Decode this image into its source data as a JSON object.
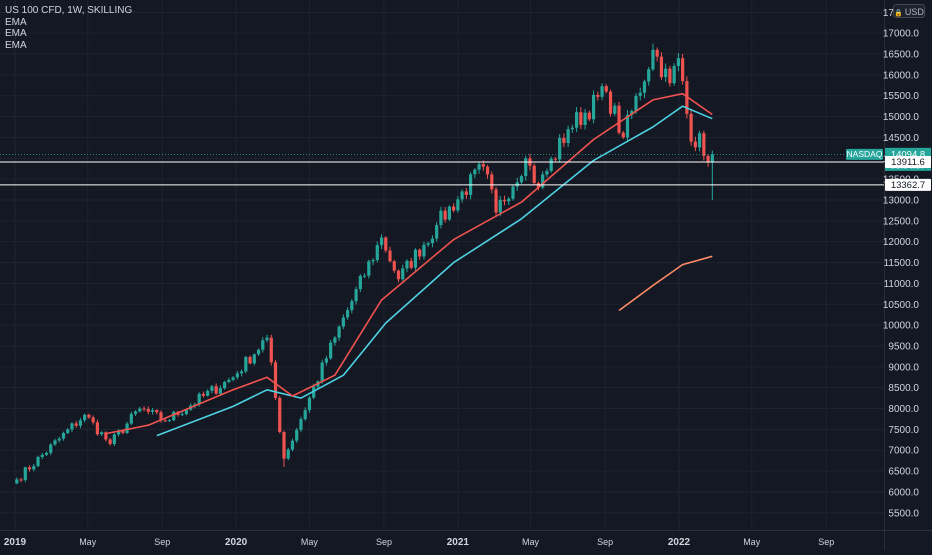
{
  "legend": {
    "symbol_line": "US 100 CFD, 1W, SKILLING",
    "indicator_1": "EMA",
    "indicator_2": "EMA",
    "indicator_3": "EMA"
  },
  "currency_button": {
    "label": "USD"
  },
  "price_labels": {
    "symbol_tag": "NASDAQ",
    "last_price": "14094.8",
    "countdown": "03:54:37",
    "level_1": "13911.6",
    "level_2": "13362.7"
  },
  "colors": {
    "background": "#141823",
    "up": "#26a69a",
    "down": "#ef5350",
    "ema_fast": "#ef5350",
    "ema_slow": "#4dd0e1",
    "ema_long": "#ff8a65",
    "horizontal_line": "#ffffff",
    "text": "#d1d4dc"
  },
  "chart_data": {
    "type": "candlestick",
    "timeframe": "1W",
    "y_axis": {
      "min": 5200,
      "max": 17500,
      "position": "right",
      "ticks": [
        5500,
        6000,
        6500,
        7000,
        7500,
        8000,
        8500,
        9000,
        9500,
        10000,
        10500,
        11000,
        11500,
        12000,
        12500,
        13000,
        13500,
        14000,
        14500,
        15000,
        15500,
        16000,
        16500,
        17000,
        17500
      ],
      "tick_labels": [
        "5500.0",
        "6000.0",
        "6500.0",
        "7000.0",
        "7500.0",
        "8000.0",
        "8500.0",
        "9000.0",
        "9500.0",
        "10000.0",
        "10500.0",
        "11000.0",
        "11500.0",
        "12000.0",
        "12500.0",
        "13000.0",
        "13500.0",
        "14000.0",
        "14500.0",
        "15000.0",
        "15500.0",
        "16000.0",
        "16500.0",
        "17000.0",
        "17500.0"
      ]
    },
    "x_axis": {
      "start": "2019-01",
      "end": "2022-12",
      "ticks": [
        "2019-01",
        "2019-05",
        "2019-09",
        "2020-01",
        "2020-05",
        "2020-09",
        "2021-01",
        "2021-05",
        "2021-09",
        "2022-01",
        "2022-05",
        "2022-09",
        "2023-01"
      ],
      "tick_labels": [
        "2019",
        "May",
        "Sep",
        "2020",
        "May",
        "Sep",
        "2021",
        "May",
        "Sep",
        "2022",
        "May",
        "Sep",
        ""
      ]
    },
    "key_points": [
      {
        "date": "2019-01-04",
        "close": 6300
      },
      {
        "date": "2019-04-26",
        "close": 7850
      },
      {
        "date": "2019-06-07",
        "close": 7150
      },
      {
        "date": "2019-07-26",
        "close": 8000
      },
      {
        "date": "2019-09-06",
        "close": 7700
      },
      {
        "date": "2019-12-27",
        "close": 8750
      },
      {
        "date": "2020-02-21",
        "close": 9700
      },
      {
        "date": "2020-03-20",
        "close": 6800
      },
      {
        "date": "2020-06-12",
        "close": 9700
      },
      {
        "date": "2020-08-28",
        "close": 12100
      },
      {
        "date": "2020-09-25",
        "close": 11100
      },
      {
        "date": "2020-11-27",
        "close": 12400
      },
      {
        "date": "2021-02-12",
        "close": 13800
      },
      {
        "date": "2021-03-05",
        "close": 12700
      },
      {
        "date": "2021-04-23",
        "close": 14000
      },
      {
        "date": "2021-05-14",
        "close": 13300
      },
      {
        "date": "2021-07-02",
        "close": 14700
      },
      {
        "date": "2021-09-03",
        "close": 15600
      },
      {
        "date": "2021-10-01",
        "close": 14500
      },
      {
        "date": "2021-11-19",
        "close": 16600
      },
      {
        "date": "2021-12-17",
        "close": 15800
      },
      {
        "date": "2021-12-31",
        "close": 16400
      },
      {
        "date": "2022-01-21",
        "close": 14400
      },
      {
        "date": "2022-02-04",
        "close": 14600
      },
      {
        "date": "2022-02-18",
        "close": 13900
      },
      {
        "date": "2022-02-25",
        "close": 14095
      }
    ],
    "wick_extremes": [
      {
        "date": "2020-03-20",
        "low": 6600
      },
      {
        "date": "2021-11-19",
        "high": 16750
      },
      {
        "date": "2022-02-25",
        "low": 13000
      }
    ],
    "ema_fast": [
      {
        "date": "2019-05-31",
        "value": 7400
      },
      {
        "date": "2019-08-09",
        "value": 7600
      },
      {
        "date": "2019-12-27",
        "value": 8450
      },
      {
        "date": "2020-02-21",
        "value": 8750
      },
      {
        "date": "2020-04-03",
        "value": 8300
      },
      {
        "date": "2020-06-12",
        "value": 8800
      },
      {
        "date": "2020-08-28",
        "value": 10600
      },
      {
        "date": "2020-12-25",
        "value": 12050
      },
      {
        "date": "2021-04-16",
        "value": 12950
      },
      {
        "date": "2021-08-13",
        "value": 14450
      },
      {
        "date": "2021-11-19",
        "value": 15400
      },
      {
        "date": "2022-01-07",
        "value": 15550
      },
      {
        "date": "2022-02-25",
        "value": 15050
      }
    ],
    "ema_slow": [
      {
        "date": "2019-08-23",
        "value": 7350
      },
      {
        "date": "2019-12-27",
        "value": 8050
      },
      {
        "date": "2020-02-21",
        "value": 8450
      },
      {
        "date": "2020-04-17",
        "value": 8250
      },
      {
        "date": "2020-06-26",
        "value": 8800
      },
      {
        "date": "2020-09-04",
        "value": 10050
      },
      {
        "date": "2020-12-25",
        "value": 11500
      },
      {
        "date": "2021-04-16",
        "value": 12550
      },
      {
        "date": "2021-08-13",
        "value": 13950
      },
      {
        "date": "2021-11-19",
        "value": 14750
      },
      {
        "date": "2022-01-07",
        "value": 15250
      },
      {
        "date": "2022-02-25",
        "value": 14950
      }
    ],
    "ema_long": [
      {
        "date": "2021-09-24",
        "value": 10350
      },
      {
        "date": "2021-11-19",
        "value": 10950
      },
      {
        "date": "2022-01-07",
        "value": 11450
      },
      {
        "date": "2022-02-25",
        "value": 11650
      }
    ],
    "horizontal_levels": [
      13911.6,
      13362.7
    ]
  }
}
